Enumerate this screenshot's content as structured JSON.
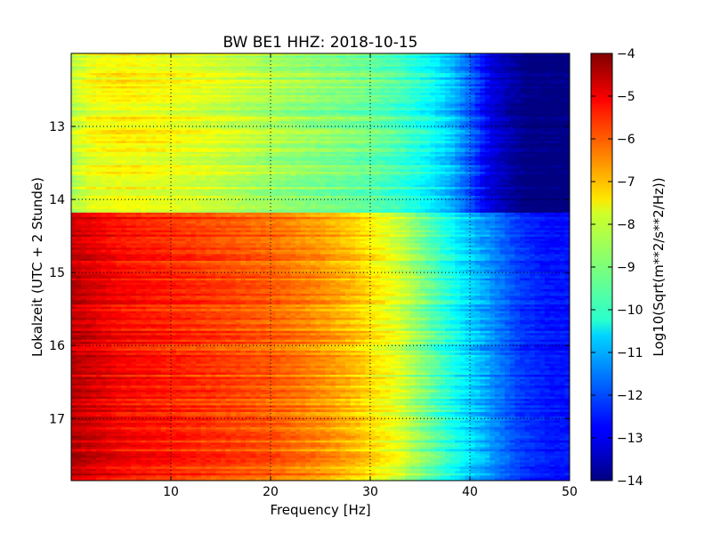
{
  "chart_data": {
    "type": "heatmap",
    "title": "BW BE1 HHZ: 2018-10-15",
    "xlabel": "Frequency [Hz]",
    "ylabel": "Lokalzeit (UTC + 2 Stunde)",
    "xlim": [
      0,
      50
    ],
    "ylim": [
      17.85,
      12.0
    ],
    "x_ticks": [
      10,
      20,
      30,
      40,
      50
    ],
    "x_tick_labels": [
      "10",
      "20",
      "30",
      "40",
      "50"
    ],
    "y_ticks": [
      13,
      14,
      15,
      16,
      17
    ],
    "y_tick_labels": [
      "13",
      "14",
      "15",
      "16",
      "17"
    ],
    "grid": true,
    "colormap": "jet",
    "colorbar": {
      "label": "Log10(Sqrt(m**2/s**2/Hz))",
      "range": [
        -14,
        -4
      ],
      "ticks": [
        -4,
        -5,
        -6,
        -7,
        -8,
        -9,
        -10,
        -11,
        -12,
        -13,
        -14
      ],
      "tick_labels": [
        "−4",
        "−5",
        "−6",
        "−7",
        "−8",
        "−9",
        "−10",
        "−11",
        "−12",
        "−13",
        "−14"
      ]
    },
    "regions": [
      {
        "time_range": [
          12.0,
          14.18
        ],
        "profile_frequency_hz": [
          0,
          2,
          5,
          10,
          15,
          20,
          25,
          30,
          33,
          36,
          38,
          40,
          42,
          44,
          46,
          50
        ],
        "profile_log_psd": [
          -8.4,
          -7.9,
          -7.7,
          -7.9,
          -8.2,
          -8.6,
          -8.9,
          -9.2,
          -9.6,
          -10.2,
          -10.8,
          -11.8,
          -13.0,
          -13.6,
          -14.0,
          -14.0
        ]
      },
      {
        "time_range": [
          14.18,
          17.85
        ],
        "profile_frequency_hz": [
          0,
          2,
          5,
          10,
          15,
          20,
          25,
          28,
          30,
          33,
          36,
          38,
          40,
          42,
          45,
          48,
          50
        ],
        "profile_log_psd": [
          -4.6,
          -4.9,
          -5.3,
          -5.6,
          -5.9,
          -6.2,
          -6.7,
          -7.1,
          -7.5,
          -8.2,
          -9.3,
          -10.0,
          -10.7,
          -11.3,
          -12.2,
          -12.6,
          -12.6
        ]
      }
    ]
  }
}
